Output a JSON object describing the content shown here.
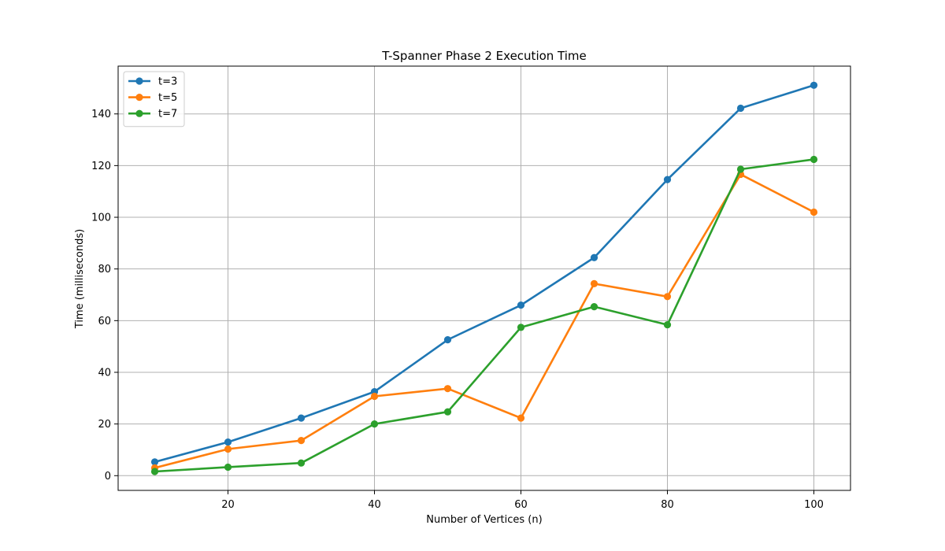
{
  "chart_data": {
    "type": "line",
    "title": "T-Spanner Phase 2 Execution Time",
    "xlabel": "Number of Vertices (n)",
    "ylabel": "Time (milliseconds)",
    "x": [
      10,
      20,
      30,
      40,
      50,
      60,
      70,
      80,
      90,
      100
    ],
    "xlim": [
      5,
      105
    ],
    "ylim": [
      -5.7,
      158.5
    ],
    "xticks": [
      20,
      40,
      60,
      80,
      100
    ],
    "yticks": [
      0,
      20,
      40,
      60,
      80,
      100,
      120,
      140
    ],
    "grid": true,
    "legend_position": "top-left",
    "series": [
      {
        "name": "t=3",
        "color": "#1f77b4",
        "values": [
          5.3,
          13.0,
          22.3,
          32.5,
          52.6,
          66.0,
          84.4,
          114.6,
          142.2,
          151.1
        ]
      },
      {
        "name": "t=5",
        "color": "#ff7f0e",
        "values": [
          3.0,
          10.3,
          13.6,
          30.7,
          33.7,
          22.3,
          74.3,
          69.3,
          116.6,
          102.0
        ]
      },
      {
        "name": "t=7",
        "color": "#2ca02c",
        "values": [
          1.6,
          3.3,
          4.9,
          20.0,
          24.7,
          57.4,
          65.4,
          58.4,
          118.6,
          122.4
        ]
      }
    ]
  }
}
